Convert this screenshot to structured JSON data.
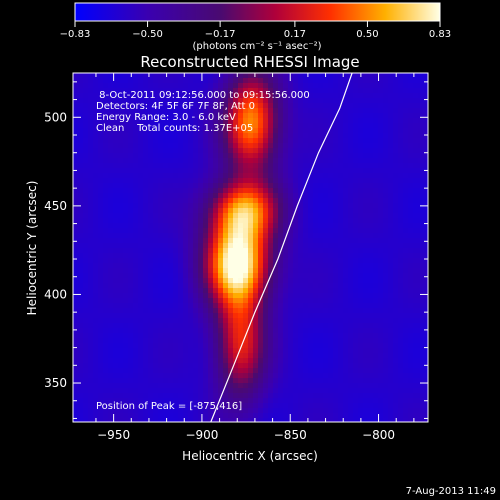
{
  "chart_data": {
    "type": "heatmap",
    "title": "Reconstructed RHESSI Image",
    "xlabel": "Heliocentric X (arcsec)",
    "ylabel": "Heliocentric Y (arcsec)",
    "xlim": [
      -973,
      -772
    ],
    "ylim": [
      328,
      525
    ],
    "xticks": [
      -950,
      -900,
      -850,
      -800
    ],
    "xtick_labels": [
      "−950",
      "−900",
      "−850",
      "−800"
    ],
    "yticks": [
      350,
      400,
      450,
      500
    ],
    "ytick_labels": [
      "350",
      "400",
      "450",
      "500"
    ],
    "colorbar": {
      "min": -0.83,
      "max": 0.83,
      "ticks": [
        -0.83,
        -0.5,
        -0.17,
        0.17,
        0.5,
        0.83
      ],
      "tick_labels": [
        "−0.83",
        "−0.50",
        "−0.17",
        "0.17",
        "0.50",
        "0.83"
      ],
      "units_label": "(photons cm⁻² s⁻¹ asec⁻²)",
      "colormap": "RHESSI color table: blue-purple-red-orange-yellow-white"
    },
    "annotations": [
      " 8-Oct-2011 09:12:56.000 to 09:15:56.000",
      "Detectors: 4F 5F 6F 7F 8F, Att 0",
      "Energy Range: 3.0 - 6.0 keV",
      "Clean    Total counts: 1.37E+05"
    ],
    "peak_label": "Position of Peak = [-875,416]",
    "peak": {
      "x": -875,
      "y": 416
    },
    "sources": [
      {
        "x": -880,
        "y": 418,
        "sx": 13,
        "sy": 17,
        "amp": 0.83
      },
      {
        "x": -876,
        "y": 448,
        "sx": 14,
        "sy": 12,
        "amp": 0.36
      },
      {
        "x": -872,
        "y": 497,
        "sx": 11,
        "sy": 20,
        "amp": 0.52
      },
      {
        "x": -878,
        "y": 372,
        "sx": 10,
        "sy": 22,
        "amp": 0.24
      }
    ],
    "background_level": -0.62,
    "limb_curve": [
      [
        -895,
        328
      ],
      [
        -882,
        360
      ],
      [
        -870,
        390
      ],
      [
        -857,
        420
      ],
      [
        -846,
        450
      ],
      [
        -834,
        480
      ],
      [
        -822,
        505
      ],
      [
        -815,
        525
      ]
    ],
    "timestamp": "7-Aug-2013 11:49"
  }
}
